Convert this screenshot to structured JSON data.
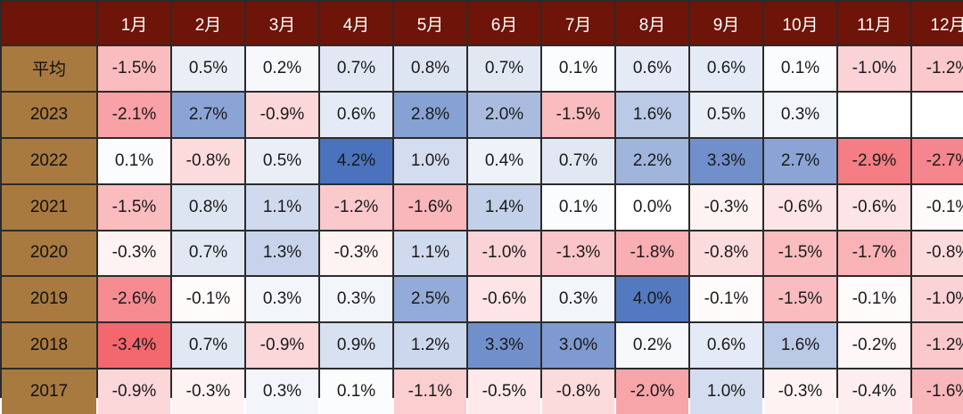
{
  "chart_data": {
    "type": "heatmap",
    "columns": [
      "1月",
      "2月",
      "3月",
      "4月",
      "5月",
      "6月",
      "7月",
      "8月",
      "9月",
      "10月",
      "11月",
      "12月"
    ],
    "rows": [
      "平均",
      "2023",
      "2022",
      "2021",
      "2020",
      "2019",
      "2018",
      "2017"
    ],
    "values": [
      [
        -1.5,
        0.5,
        0.2,
        0.7,
        0.8,
        0.7,
        0.1,
        0.6,
        0.6,
        0.1,
        -1.0,
        -1.2
      ],
      [
        -2.1,
        2.7,
        -0.9,
        0.6,
        2.8,
        2.0,
        -1.5,
        1.6,
        0.5,
        0.3,
        null,
        null
      ],
      [
        0.1,
        -0.8,
        0.5,
        4.2,
        1.0,
        0.4,
        0.7,
        2.2,
        3.3,
        2.7,
        -2.9,
        -2.7
      ],
      [
        -1.5,
        0.8,
        1.1,
        -1.2,
        -1.6,
        1.4,
        0.1,
        0.0,
        -0.3,
        -0.6,
        -0.6,
        -0.1
      ],
      [
        -0.3,
        0.7,
        1.3,
        -0.3,
        1.1,
        -1.0,
        -1.3,
        -1.8,
        -0.8,
        -1.5,
        -1.7,
        -0.8
      ],
      [
        -2.6,
        -0.1,
        0.3,
        0.3,
        2.5,
        -0.6,
        0.3,
        4.0,
        -0.1,
        -1.5,
        -0.1,
        -1.0
      ],
      [
        -3.4,
        0.7,
        -0.9,
        0.9,
        1.2,
        3.3,
        3.0,
        0.2,
        0.6,
        1.6,
        -0.2,
        -1.2
      ],
      [
        -0.9,
        -0.3,
        0.3,
        0.1,
        -1.1,
        -0.5,
        -0.8,
        -2.0,
        1.0,
        -0.3,
        -0.4,
        -1.6
      ]
    ],
    "value_suffix": "%",
    "colors": {
      "positive": "#4a72bd",
      "negative": "#f0434d",
      "neutral": "#ffffff",
      "header_bg": "#6e1408",
      "row_label_bg": "#a87a40",
      "grid_line": "#2b2b2b"
    },
    "color_scale_max": 4.2
  }
}
